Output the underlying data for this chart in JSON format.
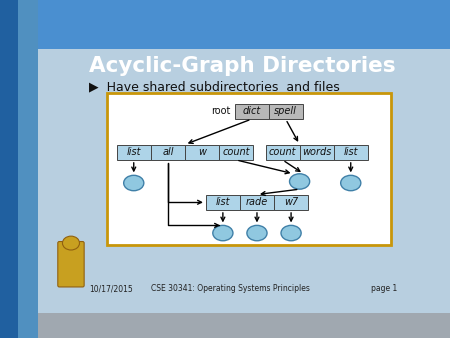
{
  "title": "Acyclic-Graph Directories",
  "subtitle": "▶  Have shared subdirectories  and files",
  "footer_left": "10/17/2015",
  "footer_center": "CSE 30341: Operating Systems Principles",
  "footer_right": "page 1",
  "header_color_dark": "#1a5fa8",
  "header_color_light": "#4a8fd0",
  "slide_bg": "#b8cfe0",
  "left_stripe_dark": "#2060a0",
  "left_stripe_light": "#5090c0",
  "footer_bg": "#a0a8b0",
  "diagram_border": "#c8960a",
  "diagram_bg": "#ffffff",
  "box_gray": "#b8b8b8",
  "box_blue": "#aed4e8",
  "node_face": "#90c8e0",
  "node_edge": "#4080a8",
  "root_label": "root",
  "root_items": [
    "dict",
    "spell"
  ],
  "left_items": [
    "list",
    "all",
    "w",
    "count"
  ],
  "right_items": [
    "count",
    "words",
    "list"
  ],
  "bottom_items": [
    "list",
    "rade",
    "w7"
  ]
}
